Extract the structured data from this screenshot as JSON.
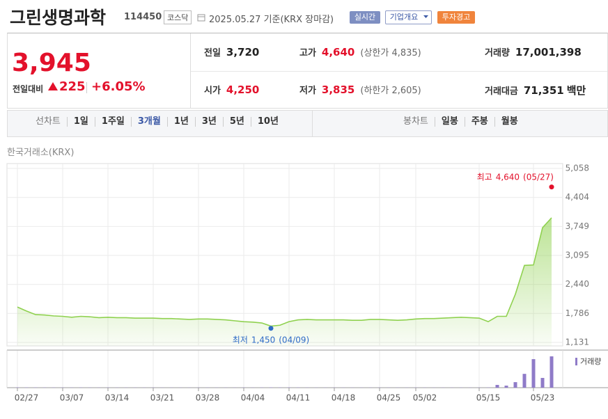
{
  "header": {
    "title": "그린생명과학",
    "code": "114450",
    "market": "코스닥",
    "date": "2025.05.27 기준(KRX 장마감)",
    "buttons": [
      "실시간",
      "기업개요",
      "투자경고"
    ]
  },
  "price": {
    "current": "3,945",
    "change_label": "전일대비",
    "change": "225",
    "change_pct": "+6.05%"
  },
  "summary": [
    [
      {
        "label": "전일",
        "value": "3,720"
      },
      {
        "label": "고가",
        "value": "4,640",
        "sub": "(상한가 4,835)"
      },
      {
        "label": "거래량",
        "value": "17,001,398"
      }
    ],
    [
      {
        "label": "시가",
        "value": "4,250"
      },
      {
        "label": "저가",
        "value": "3,835",
        "sub": "(하한가 2,605)"
      },
      {
        "label": "거래대금",
        "value": "71,351",
        "unit": "백만"
      }
    ]
  ],
  "toolbar": {
    "line_label": "선차트",
    "periods": [
      "1일",
      "1주일",
      "3개월",
      "1년",
      "3년",
      "5년",
      "10년"
    ],
    "selected": 2,
    "candle_label": "봉차트",
    "candles": [
      "일봉",
      "주봉",
      "월봉"
    ]
  },
  "chart_data": {
    "type": "area",
    "source": "한국거래소(KRX)",
    "color": "#8fd14f",
    "categories": [
      "02/27",
      null,
      null,
      null,
      null,
      "03/07",
      null,
      null,
      null,
      null,
      "03/14",
      null,
      null,
      null,
      null,
      "03/21",
      null,
      null,
      null,
      null,
      "03/28",
      null,
      null,
      null,
      null,
      "04/04",
      null,
      null,
      null,
      null,
      "04/11",
      null,
      null,
      null,
      null,
      "04/18",
      null,
      null,
      null,
      null,
      "04/25",
      null,
      null,
      null,
      "05/02",
      null,
      null,
      null,
      null,
      null,
      null,
      "05/15",
      null,
      null,
      null,
      null,
      null,
      "05/23",
      null,
      null
    ],
    "values": [
      1930,
      1840,
      1760,
      1750,
      1730,
      1720,
      1700,
      1720,
      1710,
      1690,
      1700,
      1690,
      1690,
      1680,
      1680,
      1680,
      1670,
      1670,
      1660,
      1650,
      1660,
      1660,
      1650,
      1640,
      1620,
      1600,
      1590,
      1570,
      1500,
      1520,
      1600,
      1640,
      1650,
      1640,
      1640,
      1640,
      1640,
      1630,
      1630,
      1650,
      1650,
      1640,
      1630,
      1640,
      1660,
      1670,
      1670,
      1680,
      1690,
      1700,
      1690,
      1680,
      1600,
      1720,
      1720,
      2220,
      2870,
      2880,
      3720,
      3945
    ],
    "ylim": [
      1131,
      5058
    ],
    "yticks": [
      {
        "value": 1131,
        "label": "1,131"
      },
      {
        "value": 1786,
        "label": "1,786"
      },
      {
        "value": 2440,
        "label": "2,440"
      },
      {
        "value": 3095,
        "label": "3,095"
      },
      {
        "value": 3749,
        "label": "3,749"
      },
      {
        "value": 4404,
        "label": "4,404"
      },
      {
        "value": 5058,
        "label": "5,058"
      }
    ],
    "grid": true,
    "high": {
      "label": "최고",
      "value": 4640,
      "value_label": "4,640",
      "date": "(05/27)",
      "color": "#e3112b"
    },
    "low": {
      "label": "최저",
      "value": 1450,
      "value_label": "1,450",
      "date": "(04/09)",
      "color": "#2e6bc6"
    },
    "volume": {
      "name": "거래량",
      "color": "#8f7bc8",
      "values": [
        150000,
        130000,
        120000,
        110000,
        110000,
        100000,
        100000,
        110000,
        100000,
        90000,
        100000,
        90000,
        90000,
        90000,
        90000,
        90000,
        80000,
        80000,
        80000,
        80000,
        80000,
        80000,
        80000,
        90000,
        90000,
        100000,
        90000,
        110000,
        160000,
        130000,
        140000,
        110000,
        90000,
        80000,
        80000,
        80000,
        80000,
        80000,
        80000,
        90000,
        90000,
        80000,
        80000,
        80000,
        90000,
        90000,
        80000,
        90000,
        90000,
        100000,
        90000,
        90000,
        120000,
        1500000,
        1100000,
        3000000,
        7500000,
        15500000,
        5300000,
        17001398
      ]
    }
  }
}
